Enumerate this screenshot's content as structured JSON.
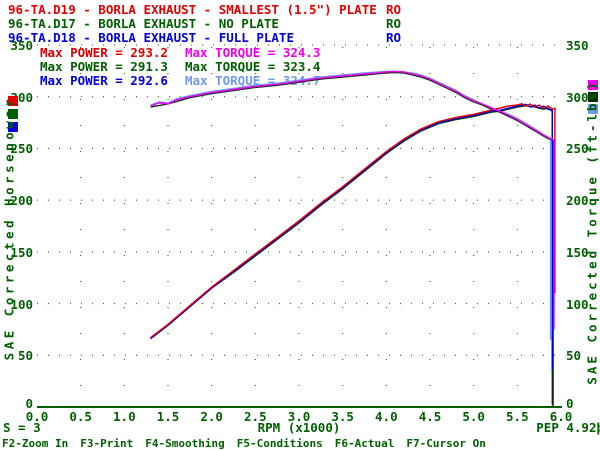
{
  "colors": {
    "background": "#ffffff",
    "axis_text": "#006000",
    "grid_dot": "#006000",
    "red": "#e00000",
    "dark_green": "#006000",
    "blue": "#0000e0",
    "magenta": "#ee00ee",
    "light_blue": "#6f9af0",
    "curve_dark": "#0c2c0c"
  },
  "header": {
    "suffix_column_x": 386,
    "runs": [
      {
        "file": "96-TA.D19",
        "description": "BORLA EXHAUST - SMALLEST (1.5\") PLATE",
        "suffix": "RO",
        "color": "red"
      },
      {
        "file": "96-TA.D17",
        "description": "BORLA EXHAUST - NO PLATE",
        "suffix": "RO",
        "color": "dark_green"
      },
      {
        "file": "96-TA.D18",
        "description": "BORLA EXHAUST - FULL PLATE",
        "suffix": "RO",
        "color": "blue"
      }
    ]
  },
  "legend": {
    "rows": [
      {
        "power": "Max POWER = 293.2",
        "power_color": "red",
        "torque": "Max TORQUE = 324.3",
        "torque_color": "magenta"
      },
      {
        "power": "Max POWER = 291.3",
        "power_color": "dark_green",
        "torque": "Max TORQUE = 323.4",
        "torque_color": "dark_green"
      },
      {
        "power": "Max POWER = 292.6",
        "power_color": "blue",
        "torque": "Max TORQUE = 324.7",
        "torque_color": "light_blue"
      }
    ]
  },
  "status_bar": {
    "left": "S = 3",
    "right": "PEP 4.92þ"
  },
  "function_keys": [
    "F2-Zoom In",
    "F3-Print",
    "F4-Smoothing",
    "F5-Conditions",
    "F6-Actual",
    "F7-Cursor On"
  ],
  "chart_data": {
    "type": "line",
    "title": "",
    "xlabel": "RPM (x1000)",
    "ylabel_left": "SAE Corrected Horsepower",
    "ylabel_right": "SAE Corrected Torque (ft-lbs)",
    "xlim": [
      0,
      6
    ],
    "ylim": [
      0,
      350
    ],
    "x_ticks": [
      "0.0",
      "0.5",
      "1.0",
      "1.5",
      "2.0",
      "2.5",
      "3.0",
      "3.5",
      "4.0",
      "4.5",
      "5.0",
      "5.5",
      "6.0"
    ],
    "y_ticks": [
      "350",
      "300",
      "250",
      "200",
      "150",
      "100",
      "50",
      "0"
    ],
    "grid": "dotted",
    "legend_position": "top-left-inside",
    "series": [
      {
        "name": "96-TA.D17 power",
        "unit": "hp",
        "color_key": "curve_dark",
        "max": 291.3,
        "points": [
          [
            1.3,
            66
          ],
          [
            1.5,
            79
          ],
          [
            1.75,
            97
          ],
          [
            2.0,
            115
          ],
          [
            2.25,
            130
          ],
          [
            2.5,
            146
          ],
          [
            2.75,
            162
          ],
          [
            3.0,
            178
          ],
          [
            3.25,
            195
          ],
          [
            3.5,
            211
          ],
          [
            3.75,
            228
          ],
          [
            4.0,
            245
          ],
          [
            4.2,
            257
          ],
          [
            4.4,
            267
          ],
          [
            4.6,
            274
          ],
          [
            4.8,
            278
          ],
          [
            5.0,
            281
          ],
          [
            5.1,
            283
          ],
          [
            5.2,
            285
          ],
          [
            5.3,
            286
          ],
          [
            5.4,
            288
          ],
          [
            5.5,
            290
          ],
          [
            5.6,
            291.3
          ],
          [
            5.7,
            290
          ],
          [
            5.8,
            288
          ],
          [
            5.85,
            289
          ],
          [
            5.9,
            286
          ],
          [
            5.9,
            2
          ]
        ]
      },
      {
        "name": "96-TA.D17 torque",
        "unit": "ft-lbs",
        "color_key": "curve_dark",
        "max": 323.4,
        "points": [
          [
            1.3,
            290
          ],
          [
            1.5,
            293
          ],
          [
            1.75,
            299
          ],
          [
            2.0,
            303
          ],
          [
            2.25,
            306
          ],
          [
            2.5,
            309
          ],
          [
            2.75,
            311
          ],
          [
            3.0,
            314
          ],
          [
            3.25,
            317
          ],
          [
            3.5,
            319
          ],
          [
            3.75,
            321
          ],
          [
            4.0,
            323
          ],
          [
            4.1,
            323.4
          ],
          [
            4.2,
            323
          ],
          [
            4.3,
            321
          ],
          [
            4.4,
            319
          ],
          [
            4.5,
            316
          ],
          [
            4.6,
            312
          ],
          [
            4.7,
            308
          ],
          [
            4.8,
            304
          ],
          [
            4.9,
            299
          ],
          [
            5.0,
            295
          ],
          [
            5.1,
            292
          ],
          [
            5.2,
            288
          ],
          [
            5.3,
            285
          ],
          [
            5.4,
            281
          ],
          [
            5.5,
            277
          ],
          [
            5.6,
            272
          ],
          [
            5.7,
            267
          ],
          [
            5.8,
            262
          ],
          [
            5.91,
            257
          ],
          [
            5.91,
            0
          ]
        ]
      },
      {
        "name": "96-TA.D18 power",
        "unit": "hp",
        "color_key": "blue",
        "max": 292.6,
        "points": [
          [
            1.3,
            66
          ],
          [
            1.5,
            79
          ],
          [
            1.75,
            97
          ],
          [
            2.0,
            115
          ],
          [
            2.25,
            131
          ],
          [
            2.5,
            147
          ],
          [
            2.75,
            163
          ],
          [
            3.0,
            179
          ],
          [
            3.25,
            196
          ],
          [
            3.5,
            212
          ],
          [
            3.75,
            229
          ],
          [
            4.0,
            246
          ],
          [
            4.2,
            258
          ],
          [
            4.4,
            268
          ],
          [
            4.6,
            275
          ],
          [
            4.8,
            279
          ],
          [
            5.0,
            282
          ],
          [
            5.1,
            284
          ],
          [
            5.2,
            286
          ],
          [
            5.3,
            287
          ],
          [
            5.4,
            289
          ],
          [
            5.5,
            291
          ],
          [
            5.6,
            292.6
          ],
          [
            5.65,
            290
          ],
          [
            5.7,
            292
          ],
          [
            5.75,
            289
          ],
          [
            5.8,
            291
          ],
          [
            5.85,
            288
          ],
          [
            5.9,
            287
          ],
          [
            5.9,
            35
          ]
        ]
      },
      {
        "name": "96-TA.D18 torque",
        "unit": "ft-lbs",
        "color_key": "light_blue",
        "max": 324.7,
        "points": [
          [
            1.3,
            292
          ],
          [
            1.4,
            295
          ],
          [
            1.5,
            294
          ],
          [
            1.6,
            298
          ],
          [
            1.75,
            301
          ],
          [
            2.0,
            305
          ],
          [
            2.25,
            308
          ],
          [
            2.5,
            311
          ],
          [
            2.75,
            313
          ],
          [
            3.0,
            316
          ],
          [
            3.25,
            319
          ],
          [
            3.5,
            321
          ],
          [
            3.75,
            323
          ],
          [
            4.0,
            324.5
          ],
          [
            4.1,
            324.7
          ],
          [
            4.2,
            324
          ],
          [
            4.3,
            323
          ],
          [
            4.4,
            321
          ],
          [
            4.5,
            318
          ],
          [
            4.6,
            314
          ],
          [
            4.7,
            310
          ],
          [
            4.8,
            306
          ],
          [
            4.9,
            301
          ],
          [
            5.0,
            297
          ],
          [
            5.1,
            293
          ],
          [
            5.2,
            290
          ],
          [
            5.3,
            286
          ],
          [
            5.4,
            283
          ],
          [
            5.5,
            279
          ],
          [
            5.6,
            274
          ],
          [
            5.7,
            269
          ],
          [
            5.88,
            259
          ],
          [
            5.88,
            65
          ]
        ]
      },
      {
        "name": "96-TA.D19 power",
        "unit": "hp",
        "color_key": "red",
        "max": 293.2,
        "points": [
          [
            1.3,
            67
          ],
          [
            1.5,
            80
          ],
          [
            1.75,
            98
          ],
          [
            2.0,
            116
          ],
          [
            2.25,
            132
          ],
          [
            2.5,
            148
          ],
          [
            2.75,
            164
          ],
          [
            3.0,
            180
          ],
          [
            3.25,
            197
          ],
          [
            3.5,
            213
          ],
          [
            3.75,
            230
          ],
          [
            4.0,
            247
          ],
          [
            4.2,
            259
          ],
          [
            4.4,
            269
          ],
          [
            4.6,
            276
          ],
          [
            4.8,
            280
          ],
          [
            5.0,
            283
          ],
          [
            5.1,
            285
          ],
          [
            5.2,
            287
          ],
          [
            5.3,
            289
          ],
          [
            5.4,
            291
          ],
          [
            5.5,
            292
          ],
          [
            5.55,
            293.2
          ],
          [
            5.6,
            291
          ],
          [
            5.65,
            293
          ],
          [
            5.7,
            290
          ],
          [
            5.75,
            292
          ],
          [
            5.8,
            289
          ],
          [
            5.85,
            291
          ],
          [
            5.9,
            288
          ],
          [
            5.93,
            289
          ],
          [
            5.93,
            110
          ]
        ]
      },
      {
        "name": "96-TA.D19 torque",
        "unit": "ft-lbs",
        "color_key": "magenta",
        "max": 324.3,
        "points": [
          [
            1.3,
            291
          ],
          [
            1.4,
            294
          ],
          [
            1.5,
            293
          ],
          [
            1.6,
            297
          ],
          [
            1.75,
            300
          ],
          [
            2.0,
            304
          ],
          [
            2.25,
            307
          ],
          [
            2.5,
            310
          ],
          [
            2.75,
            312
          ],
          [
            3.0,
            315
          ],
          [
            3.25,
            318
          ],
          [
            3.5,
            320
          ],
          [
            3.75,
            322
          ],
          [
            3.9,
            323
          ],
          [
            4.0,
            324
          ],
          [
            4.1,
            324.3
          ],
          [
            4.2,
            324
          ],
          [
            4.3,
            322
          ],
          [
            4.4,
            320
          ],
          [
            4.5,
            317
          ],
          [
            4.6,
            313
          ],
          [
            4.7,
            309
          ],
          [
            4.8,
            305
          ],
          [
            4.9,
            300
          ],
          [
            5.0,
            296
          ],
          [
            5.1,
            293
          ],
          [
            5.2,
            289
          ],
          [
            5.3,
            286
          ],
          [
            5.4,
            282
          ],
          [
            5.5,
            278
          ],
          [
            5.6,
            273
          ],
          [
            5.7,
            268
          ],
          [
            5.8,
            263
          ],
          [
            5.92,
            258
          ],
          [
            5.92,
            75
          ]
        ]
      }
    ],
    "max_markers": {
      "left_colors": [
        "red",
        "dark_green",
        "blue"
      ],
      "right_colors": [
        "magenta",
        "curve_dark",
        "light_blue"
      ]
    }
  }
}
